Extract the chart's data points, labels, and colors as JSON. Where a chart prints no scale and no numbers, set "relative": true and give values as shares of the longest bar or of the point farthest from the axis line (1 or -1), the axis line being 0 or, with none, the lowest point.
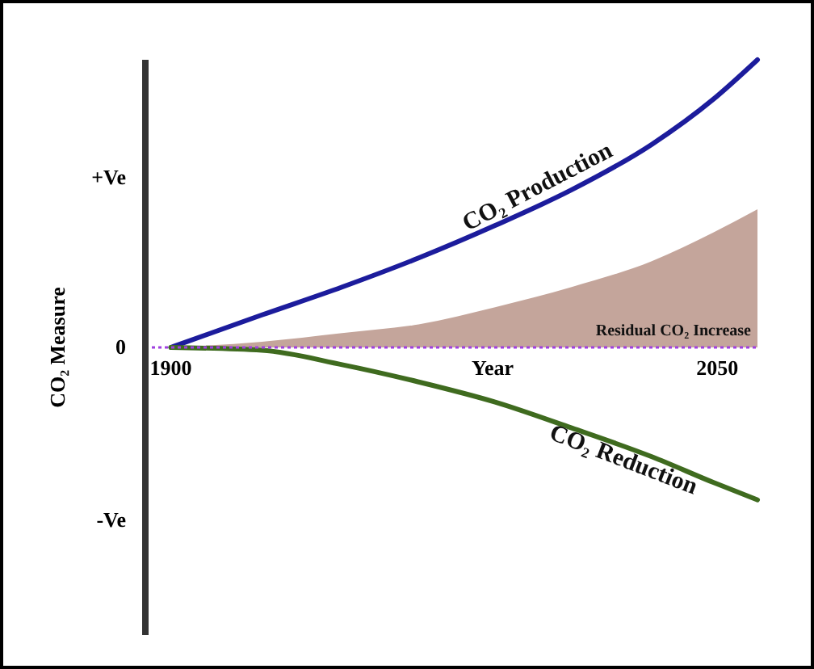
{
  "chart_data": {
    "type": "line",
    "relative": true,
    "xlabel": "Year",
    "ylabel": "CO₂ Measure",
    "x": [
      1900,
      1925,
      1947,
      1968,
      1989,
      2010,
      2032,
      2049,
      2061
    ],
    "xlim": [
      1893,
      2061
    ],
    "xticks": [
      1900,
      2050
    ],
    "annotations": [
      "+Ve",
      "0",
      "-Ve"
    ],
    "series": [
      {
        "name": "CO₂ Production",
        "color": "#1c1c9c",
        "values": [
          0,
          0.113,
          0.21,
          0.311,
          0.424,
          0.548,
          0.706,
          0.864,
          1
        ]
      },
      {
        "name": "CO₂ Reduction",
        "color": "#3f6b1f",
        "values": [
          0,
          -0.01,
          -0.06,
          -0.12,
          -0.19,
          -0.28,
          -0.38,
          -0.47,
          -0.53
        ]
      },
      {
        "name": "Residual CO₂ Increase",
        "type": "area",
        "color": "#c4a59b",
        "values": [
          0,
          0.02,
          0.05,
          0.08,
          0.14,
          0.21,
          0.3,
          0.4,
          0.48
        ]
      }
    ],
    "ref_lines": [
      {
        "axis": "y",
        "value": 0,
        "color": "#a040e0",
        "line_style": "dotted"
      }
    ]
  }
}
